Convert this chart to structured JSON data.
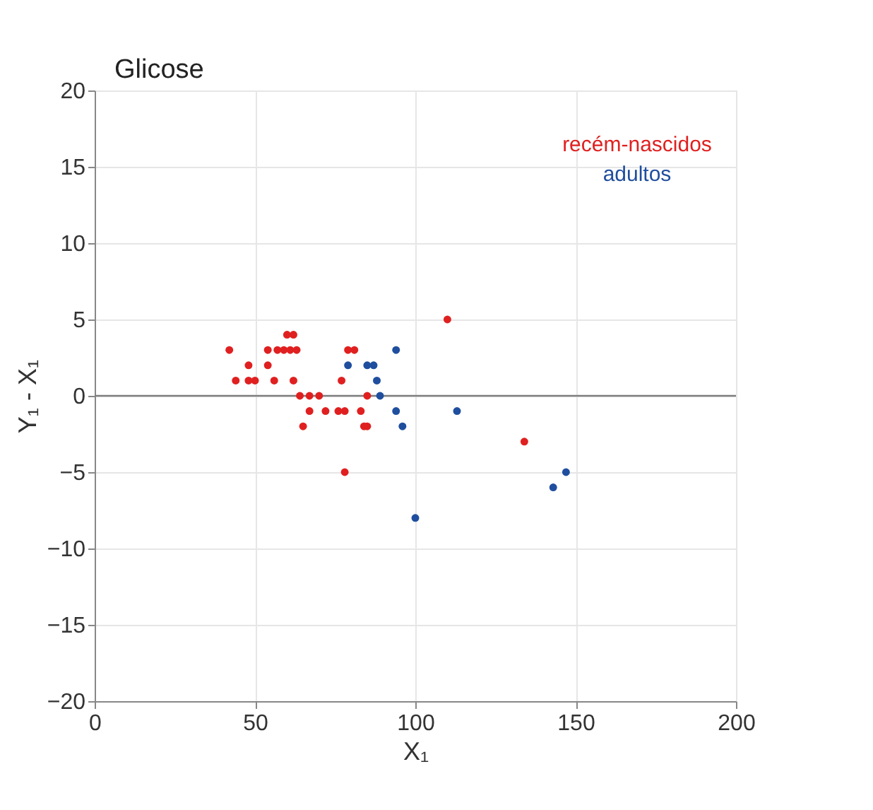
{
  "chart_data": {
    "type": "scatter",
    "title": "Glicose",
    "xlabel": "X₁",
    "ylabel": "Y₁ - X₁",
    "xlim": [
      0,
      200
    ],
    "xticks": [
      0,
      50,
      100,
      150,
      200
    ],
    "ylim": [
      -20,
      20
    ],
    "yticks": [
      -20,
      -15,
      -10,
      -5,
      0,
      5,
      10,
      15,
      20
    ],
    "grid": true,
    "legend": "top right",
    "marker": "circle",
    "ref_lines": [
      {
        "axis": "y",
        "value": 0,
        "color": "#7f7f7f"
      }
    ],
    "series": [
      {
        "name": "recém-nascidos",
        "color": "#e02020",
        "x": [
          42,
          60,
          62,
          54,
          57,
          59,
          61,
          63,
          79,
          81,
          48,
          54,
          44,
          48,
          50,
          56,
          62,
          77,
          64,
          67,
          70,
          85,
          67,
          72,
          76,
          78,
          83,
          65,
          84,
          85,
          78,
          110,
          134
        ],
        "values": [
          3,
          4,
          4,
          3,
          3,
          3,
          3,
          3,
          3,
          3,
          2,
          2,
          1,
          1,
          1,
          1,
          1,
          1,
          0,
          0,
          0,
          0,
          -1,
          -1,
          -1,
          -1,
          -1,
          -2,
          -2,
          -2,
          -5,
          5,
          -3
        ]
      },
      {
        "name": "adultos",
        "color": "#1f4e9e",
        "x": [
          94,
          79,
          85,
          87,
          88,
          89,
          94,
          96,
          113,
          100,
          147,
          143
        ],
        "values": [
          3,
          2,
          2,
          2,
          1,
          0,
          -1,
          -2,
          -1,
          -8,
          -5,
          -6
        ]
      }
    ]
  }
}
